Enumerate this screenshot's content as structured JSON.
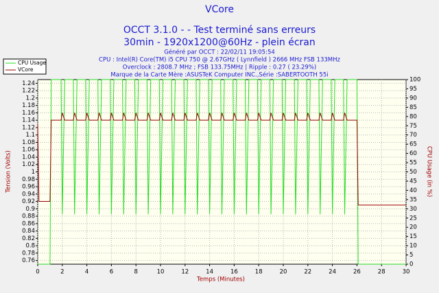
{
  "chart_data": {
    "type": "line",
    "title": "VCore",
    "title_lines": [
      "OCCT 3.1.0 -  - Test terminé sans erreurs",
      "30min - 1920x1200@60Hz - plein écran"
    ],
    "subtitle_lines": [
      "Généré par OCCT : 22/02/11 19:05:54",
      "CPU : Intel(R) Core(TM) i5 CPU 750 @ 2.67GHz ( Lynnfield ) 2666 MHz FSB 133MHz",
      "Overclock : 2808.7 MHz ; FSB 133.75MHz | Ripple : 0.27 ( 23.29%)",
      "Marque de la Carte Mère :ASUSTeK Computer INC.,Série :SABERTOOTH 55i"
    ],
    "xlabel": "Temps (Minutes)",
    "ylabel": "Tension (Volts)",
    "y2label": "CPU Usage (in %)",
    "xlim": [
      0,
      30
    ],
    "xticks": [
      0,
      2,
      4,
      6,
      8,
      10,
      12,
      14,
      16,
      18,
      20,
      22,
      24,
      26,
      28,
      30
    ],
    "ylim": [
      0.75,
      1.25
    ],
    "yticks": [
      0.76,
      0.78,
      0.8,
      0.82,
      0.84,
      0.86,
      0.88,
      0.9,
      0.92,
      0.94,
      0.96,
      0.98,
      1,
      1.02,
      1.04,
      1.06,
      1.08,
      1.1,
      1.12,
      1.14,
      1.16,
      1.18,
      1.2,
      1.22,
      1.24
    ],
    "y2lim": [
      0,
      100
    ],
    "y2ticks": [
      0,
      5,
      10,
      15,
      20,
      25,
      30,
      35,
      40,
      45,
      50,
      55,
      60,
      65,
      70,
      75,
      80,
      85,
      90,
      95,
      100
    ],
    "grid": true,
    "legend": "top-left",
    "x": [
      0,
      0.1,
      0.9,
      1,
      1.1,
      1.9,
      2,
      2.2,
      2.9,
      3,
      3.2,
      3.9,
      4,
      4.2,
      4.9,
      5,
      5.2,
      5.9,
      6,
      6.2,
      6.9,
      7,
      7.2,
      7.9,
      8,
      8.2,
      8.9,
      9,
      9.2,
      9.9,
      10,
      10.2,
      10.9,
      11,
      11.2,
      11.9,
      12,
      12.2,
      12.9,
      13,
      13.2,
      13.9,
      14,
      14.2,
      14.9,
      15,
      15.2,
      15.9,
      16,
      16.2,
      16.9,
      17,
      17.2,
      17.9,
      18,
      18.2,
      18.9,
      19,
      19.2,
      19.9,
      20,
      20.2,
      20.9,
      21,
      21.2,
      21.9,
      22,
      22.2,
      22.9,
      23,
      23.2,
      23.9,
      24,
      24.2,
      24.9,
      25,
      25.2,
      25.9,
      26,
      26.1,
      30
    ],
    "series": [
      {
        "name": "CPU Usage",
        "color": "#22dd22",
        "axis": "y2",
        "values": [
          0,
          0,
          0,
          0,
          100,
          100,
          27,
          100,
          100,
          27,
          100,
          100,
          27,
          100,
          100,
          27,
          100,
          100,
          27,
          100,
          100,
          27,
          100,
          100,
          27,
          100,
          100,
          27,
          100,
          100,
          27,
          100,
          100,
          27,
          100,
          100,
          27,
          100,
          100,
          27,
          100,
          100,
          27,
          100,
          100,
          27,
          100,
          100,
          27,
          100,
          100,
          27,
          100,
          100,
          27,
          100,
          100,
          27,
          100,
          100,
          27,
          100,
          100,
          27,
          100,
          100,
          27,
          100,
          100,
          27,
          100,
          100,
          27,
          100,
          100,
          27,
          100,
          100,
          100,
          0,
          0
        ]
      },
      {
        "name": "VCore",
        "color": "#990000",
        "values": [
          1.13,
          0.92,
          0.92,
          0.92,
          1.14,
          1.14,
          1.16,
          1.14,
          1.14,
          1.16,
          1.14,
          1.14,
          1.16,
          1.14,
          1.14,
          1.16,
          1.14,
          1.14,
          1.16,
          1.14,
          1.14,
          1.16,
          1.14,
          1.14,
          1.16,
          1.14,
          1.14,
          1.16,
          1.14,
          1.14,
          1.16,
          1.14,
          1.14,
          1.16,
          1.14,
          1.14,
          1.16,
          1.14,
          1.14,
          1.16,
          1.14,
          1.14,
          1.16,
          1.14,
          1.14,
          1.16,
          1.14,
          1.14,
          1.16,
          1.14,
          1.14,
          1.16,
          1.14,
          1.14,
          1.16,
          1.14,
          1.14,
          1.16,
          1.14,
          1.14,
          1.16,
          1.14,
          1.14,
          1.16,
          1.14,
          1.14,
          1.16,
          1.14,
          1.14,
          1.16,
          1.14,
          1.14,
          1.16,
          1.14,
          1.14,
          1.16,
          1.14,
          1.14,
          1.14,
          0.91,
          0.91
        ]
      }
    ]
  }
}
